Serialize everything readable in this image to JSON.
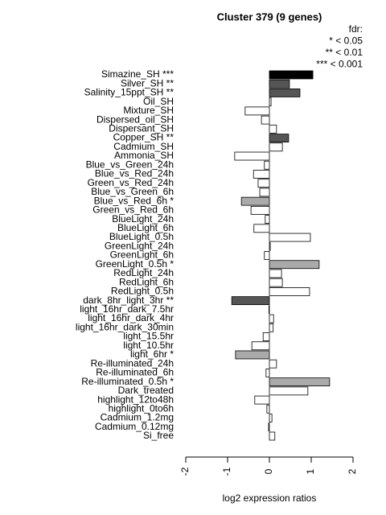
{
  "chart_data": {
    "type": "barh",
    "title": "Cluster 379 (9 genes)",
    "xlabel": "log2 expression ratios",
    "legend": [
      "fdr:",
      "* < 0.05",
      "** < 0.01",
      "*** < 0.001"
    ],
    "categories": [
      "Simazine_SH ***",
      "Silver_SH **",
      "Salinity_15ppt_SH **",
      "Oil_SH",
      "Mixture_SH",
      "Dispersed_oil_SH",
      "Dispersant_SH",
      "Copper_SH **",
      "Cadmium_SH",
      "Ammonia_SH",
      "Blue_vs_Green_24h",
      "Blue_vs_Red_24h",
      "Green_vs_Red_24h",
      "Blue_vs_Green_6h",
      "Blue_vs_Red_6h *",
      "Green_vs_Red_6h",
      "BlueLight_24h",
      "BlueLight_6h",
      "BlueLight_0.5h",
      "GreenLight_24h",
      "GreenLight_6h",
      "GreenLight_0.5h *",
      "RedLight_24h",
      "RedLight_6h",
      "RedLight_0.5h",
      "dark_8hr_light_3hr **",
      "light_16hr_dark_7.5hr",
      "light_16hr_dark_4hr",
      "light_16hr_dark_30min",
      "light_15.5hr",
      "light_10.5hr",
      "light_6hr *",
      "Re-illuminated_24h",
      "Re-illuminated_6h",
      "Re-illuminated_0.5h *",
      "Dark_treated",
      "highlight_12to48h",
      "highlight_0to6h",
      "Cadmium_1.2mg",
      "Cadmium_0.12mg",
      "Si_free"
    ],
    "values": [
      1.04,
      0.48,
      0.73,
      0.04,
      -0.58,
      -0.19,
      0.17,
      0.46,
      0.31,
      -0.83,
      -0.12,
      -0.38,
      -0.27,
      -0.23,
      -0.67,
      -0.44,
      -0.1,
      -0.37,
      0.98,
      0.02,
      -0.12,
      1.19,
      0.29,
      0.31,
      0.96,
      -0.9,
      -0.01,
      0.1,
      0.09,
      -0.15,
      -0.42,
      -0.81,
      0.17,
      -0.08,
      1.44,
      0.92,
      -0.35,
      -0.06,
      0.06,
      -0.02,
      0.13
    ],
    "colors": [
      "#000000",
      "#555555",
      "#555555",
      "#ffffff",
      "#ffffff",
      "#ffffff",
      "#ffffff",
      "#555555",
      "#ffffff",
      "#ffffff",
      "#ffffff",
      "#ffffff",
      "#ffffff",
      "#ffffff",
      "#aaaaaa",
      "#ffffff",
      "#ffffff",
      "#ffffff",
      "#ffffff",
      "#ffffff",
      "#ffffff",
      "#aaaaaa",
      "#ffffff",
      "#ffffff",
      "#ffffff",
      "#555555",
      "#ffffff",
      "#ffffff",
      "#ffffff",
      "#ffffff",
      "#ffffff",
      "#aaaaaa",
      "#ffffff",
      "#ffffff",
      "#aaaaaa",
      "#ffffff",
      "#ffffff",
      "#ffffff",
      "#ffffff",
      "#ffffff",
      "#ffffff"
    ],
    "xlim": [
      -2.2,
      2.2
    ],
    "xticks": [
      -2,
      -1,
      0,
      1,
      2
    ]
  }
}
